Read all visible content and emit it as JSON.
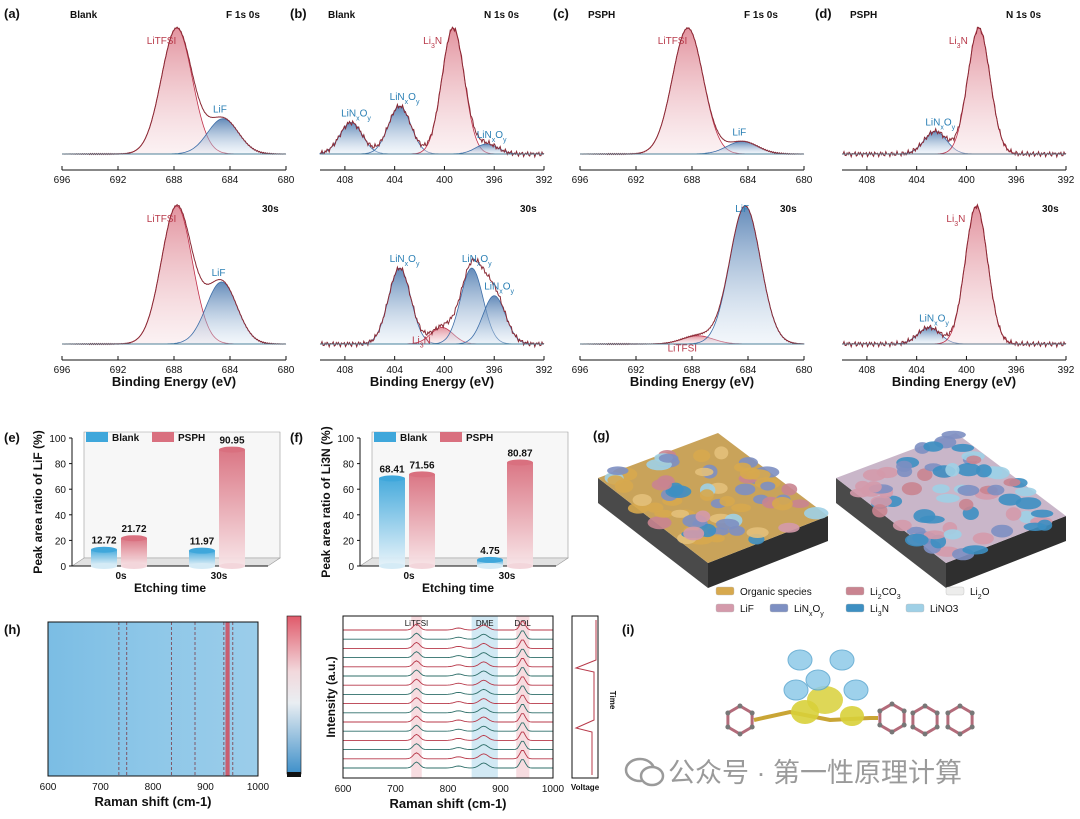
{
  "figure": {
    "panel_labels": [
      "(a)",
      "(b)",
      "(c)",
      "(d)",
      "(e)",
      "(f)",
      "(g)",
      "(h)",
      "(i)"
    ],
    "xps": {
      "axis_label": "Binding Energy (eV)",
      "panels": [
        {
          "id": "a",
          "sample": "Blank",
          "spectrum": "F 1s",
          "etch_top": "0s",
          "etch_bottom": "30s",
          "ticks": [
            "696",
            "692",
            "688",
            "684",
            "680"
          ],
          "top_peaks": [
            {
              "label": "LiTFSI",
              "pos": 687.8,
              "height": 1.0
            },
            {
              "label": "LiF",
              "pos": 684.5,
              "height": 0.28
            }
          ],
          "bottom_peaks": [
            {
              "label": "LiTFSI",
              "pos": 687.8,
              "height": 1.0
            },
            {
              "label": "LiF",
              "pos": 684.6,
              "height": 0.45
            }
          ]
        },
        {
          "id": "b",
          "sample": "Blank",
          "spectrum": "N 1s",
          "etch_top": "0s",
          "etch_bottom": "30s",
          "ticks": [
            "408",
            "404",
            "400",
            "396",
            "392"
          ],
          "top_peaks": [
            {
              "label": "LiNxOy",
              "pos": 407.5,
              "height": 0.25
            },
            {
              "label": "LiNxOy",
              "pos": 403.6,
              "height": 0.38
            },
            {
              "label": "Li3N",
              "pos": 399.3,
              "height": 1.0
            },
            {
              "label": "LiNxOy",
              "pos": 396.6,
              "height": 0.08
            }
          ],
          "bottom_peaks": [
            {
              "label": "LiNxOy",
              "pos": 403.6,
              "height": 0.55
            },
            {
              "label": "Li3N",
              "pos": 400.2,
              "height": 0.12
            },
            {
              "label": "LiNxOy",
              "pos": 397.8,
              "height": 0.55
            },
            {
              "label": "LiNxOy",
              "pos": 396.0,
              "height": 0.35
            }
          ]
        },
        {
          "id": "c",
          "sample": "PSPH",
          "spectrum": "F 1s",
          "etch_top": "0s",
          "etch_bottom": "30s",
          "ticks": [
            "696",
            "692",
            "688",
            "684",
            "680"
          ],
          "top_peaks": [
            {
              "label": "LiTFSI",
              "pos": 688.3,
              "height": 1.0
            },
            {
              "label": "LiF",
              "pos": 684.4,
              "height": 0.1
            }
          ],
          "bottom_peaks": [
            {
              "label": "LiTFSI",
              "pos": 687.6,
              "height": 0.06
            },
            {
              "label": "LiF",
              "pos": 684.2,
              "height": 1.0
            }
          ]
        },
        {
          "id": "d",
          "sample": "PSPH",
          "spectrum": "N 1s",
          "etch_top": "0s",
          "etch_bottom": "30s",
          "ticks": [
            "408",
            "404",
            "400",
            "396",
            "392"
          ],
          "top_peaks": [
            {
              "label": "LiNxOy",
              "pos": 402.5,
              "height": 0.18
            },
            {
              "label": "Li3N",
              "pos": 399.0,
              "height": 1.0
            }
          ],
          "bottom_peaks": [
            {
              "label": "LiNxOy",
              "pos": 403.0,
              "height": 0.12
            },
            {
              "label": "Li3N",
              "pos": 399.2,
              "height": 1.0
            }
          ]
        }
      ]
    },
    "legend_labels": {
      "blank": "Blank",
      "psph": "PSPH"
    },
    "colors": {
      "blank": "#3fa7db",
      "psph": "#d9707f",
      "red_text": "#b8394a",
      "blue_text": "#2a7fb4",
      "fit_red": "#c0304a",
      "fit_blue": "#3d6ea8"
    },
    "legend_g": [
      {
        "label": "Organic species",
        "color": "#d7a94e"
      },
      {
        "label": "Li2CO3",
        "color": "#c98490"
      },
      {
        "label": "Li2O",
        "color": "#ededec"
      },
      {
        "label": "LiF",
        "color": "#d49aab"
      },
      {
        "label": "LiNxOy",
        "color": "#7d8fc2"
      },
      {
        "label": "Li3N",
        "color": "#3d8fc2"
      },
      {
        "label": "LiNO3",
        "color": "#9fd0e6"
      }
    ],
    "raman": {
      "xlabel": "Raman shift (cm-1)",
      "ylabel": "Intensity (a.u.)",
      "ticks": [
        "600",
        "700",
        "800",
        "900",
        "1000"
      ],
      "bands": [
        "LiTFSI",
        "DME",
        "DOL"
      ],
      "voltage_label": "Voltage",
      "time_label": "Time"
    },
    "watermark": "公众号 · 第一性原理计算"
  },
  "chart_data": [
    {
      "type": "bar",
      "panel": "(e)",
      "title": "",
      "ylabel": "Peak area ratio of LiF (%)",
      "xlabel": "Etching time",
      "categories": [
        "0s",
        "30s"
      ],
      "series": [
        {
          "name": "Blank",
          "values": [
            12.72,
            11.97
          ],
          "labels": [
            "12.72",
            "11.97"
          ]
        },
        {
          "name": "PSPH",
          "values": [
            21.72,
            90.95
          ],
          "labels": [
            "21.72",
            "90.95"
          ]
        }
      ],
      "ylim": [
        0,
        100
      ],
      "yticks": [
        "0",
        "20",
        "40",
        "60",
        "80",
        "100"
      ]
    },
    {
      "type": "bar",
      "panel": "(f)",
      "title": "",
      "ylabel": "Peak area ratio of Li3N (%)",
      "xlabel": "Etching time",
      "categories": [
        "0s",
        "30s"
      ],
      "series": [
        {
          "name": "Blank",
          "values": [
            68.41,
            4.75
          ],
          "labels": [
            "68.41",
            "4.75"
          ]
        },
        {
          "name": "PSPH",
          "values": [
            71.56,
            80.87
          ],
          "labels": [
            "71.56",
            "80.87"
          ]
        }
      ],
      "ylim": [
        0,
        100
      ],
      "yticks": [
        "0",
        "20",
        "40",
        "60",
        "80",
        "100"
      ]
    }
  ]
}
